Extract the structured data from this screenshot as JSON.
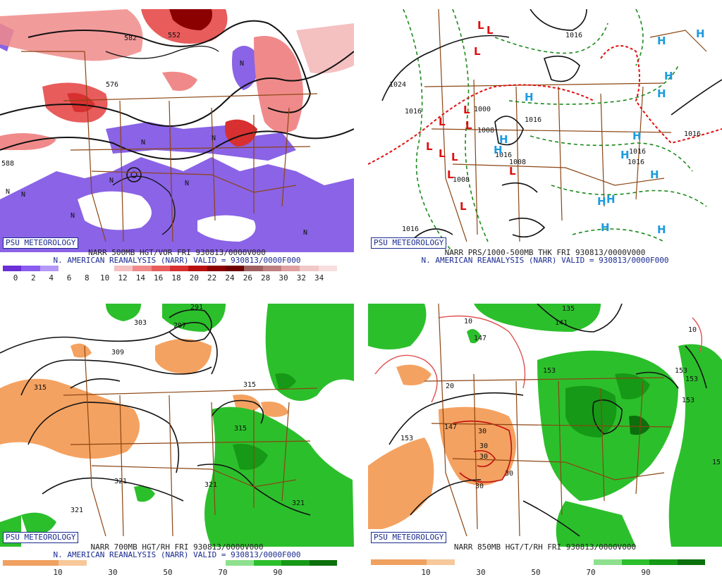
{
  "panels": [
    {
      "id": "p1",
      "logo": "PSU METEOROLOGY",
      "line1": "NARR 500MB HGT/VOR FRI 930813/0000V000",
      "line2": "N. AMERICAN REANALYSIS (NARR) VALID = 930813/0000F000",
      "colorbar": [
        "#6a2fd6",
        "#8b5cf0",
        "#b49af6",
        "#ffffff",
        "#ffffff",
        "#ffffff",
        "#f5c0c0",
        "#f08a8a",
        "#e85c5c",
        "#d83030",
        "#b81010",
        "#8b0000",
        "#6e0000",
        "#a06060",
        "#c08080",
        "#e0a0a0",
        "#f0c8c8",
        "#f8dede"
      ],
      "ticks": [
        "0",
        "2",
        "4",
        "6",
        "8",
        "10",
        "12",
        "14",
        "16",
        "18",
        "20",
        "22",
        "24",
        "26",
        "28",
        "30",
        "32",
        "34"
      ],
      "labels": [
        "582",
        "552",
        "576",
        "588",
        "N",
        "N",
        "N",
        "N",
        "N",
        "N",
        "N",
        "N",
        "N"
      ]
    },
    {
      "id": "p2",
      "logo": "PSU METEOROLOGY",
      "line1": "NARR PRS/1000-500MB THK FRI 930813/0000V000",
      "line2": "N. AMERICAN REANALYSIS (NARR) VALID = 930813/0000F000",
      "labels": [
        "1024",
        "1016",
        "1008",
        "1016",
        "1016",
        "1016",
        "1016",
        "1016",
        "1000",
        "1008",
        "1016",
        "1008",
        "1016"
      ],
      "highs": [
        "H",
        "H",
        "H",
        "H",
        "H",
        "H",
        "H",
        "H",
        "H",
        "H",
        "H",
        "H",
        "H",
        "H"
      ],
      "lows": [
        "L",
        "L",
        "L",
        "L",
        "L",
        "L",
        "L",
        "L",
        "L",
        "L",
        "L",
        "L"
      ]
    },
    {
      "id": "p3",
      "logo": "PSU METEOROLOGY",
      "line1": "NARR 700MB HGT/RH FRI 930813/0000V000",
      "line2": "N. AMERICAN REANALYSIS (NARR) VALID = 930813/0000F000",
      "colorbar": [
        "#f0a060",
        "#f0a060",
        "#f7c89a",
        "#ffffff",
        "#ffffff",
        "#ffffff",
        "#ffffff",
        "#ffffff",
        "#8ee08e",
        "#2cbf2c",
        "#169916",
        "#0b6f0b"
      ],
      "ticks": [
        "10",
        "30",
        "50",
        "70",
        "90"
      ],
      "labels": [
        "291",
        "297",
        "303",
        "309",
        "315",
        "315",
        "315",
        "321",
        "321",
        "321",
        "321"
      ]
    },
    {
      "id": "p4",
      "logo": "PSU METEOROLOGY",
      "line1": "NARR 850MB HGT/T/RH FRI 930813/0000V000",
      "colorbar": [
        "#f0a060",
        "#f0a060",
        "#f7c89a",
        "#ffffff",
        "#ffffff",
        "#ffffff",
        "#ffffff",
        "#ffffff",
        "#8ee08e",
        "#2cbf2c",
        "#169916",
        "#0b6f0b"
      ],
      "ticks": [
        "10",
        "30",
        "50",
        "70",
        "90"
      ],
      "labels": [
        "135",
        "141",
        "147",
        "153",
        "153",
        "153",
        "153",
        "153",
        "15",
        "10",
        "10",
        "20",
        "30",
        "30",
        "30",
        "30",
        "30",
        "147"
      ]
    }
  ],
  "colors": {
    "border_state": "#8b4513",
    "contour": "#111111",
    "blue_text": "#1a2b8f",
    "high": "#1e9be0",
    "low": "#e01010",
    "thickness_green": "#1a8a1a",
    "thickness_red": "#e01010"
  }
}
